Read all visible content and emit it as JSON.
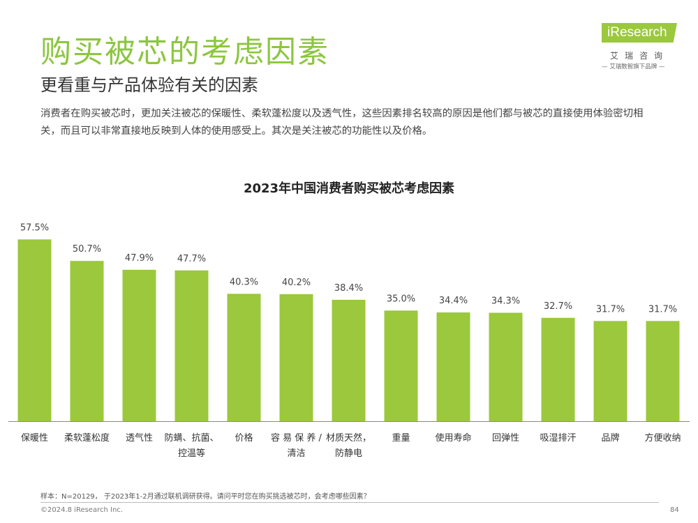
{
  "page": {
    "title": "购买被芯的考虑因素",
    "subtitle": "更看重与产品体验有关的因素",
    "description": "消费者在购买被芯时，更加关注被芯的保暖性、柔软蓬松度以及透气性，这些因素排名较高的原因是他们都与被芯的直接使用体验密切相关，而且可以非常直接地反映到人体的使用感受上。其次是关注被芯的功能性以及价格。"
  },
  "logo": {
    "brand": "iResearch",
    "cn_name": "艾瑞咨询",
    "slogan": "— 艾瑞数智旗下品牌 —",
    "color": "#9bc83c"
  },
  "chart_data": {
    "type": "bar",
    "title": "2023年中国消费者购买被芯考虑因素",
    "categories": [
      "保暖性",
      "柔软蓬松度",
      "透气性",
      "防螨、抗菌、控温等",
      "价格",
      "容易保养/清洁",
      "材质天然，防静电",
      "重量",
      "使用寿命",
      "回弹性",
      "吸湿排汗",
      "品牌",
      "方便收纳"
    ],
    "category_lines": [
      [
        "保暖性"
      ],
      [
        "柔软蓬松度"
      ],
      [
        "透气性"
      ],
      [
        "防螨、抗菌、",
        "控温等"
      ],
      [
        "价格"
      ],
      [
        "容 易 保 养 /",
        "清洁"
      ],
      [
        "材质天然，",
        "防静电"
      ],
      [
        "重量"
      ],
      [
        "使用寿命"
      ],
      [
        "回弹性"
      ],
      [
        "吸湿排汗"
      ],
      [
        "品牌"
      ],
      [
        "方便收纳"
      ]
    ],
    "values": [
      57.5,
      50.7,
      47.9,
      47.7,
      40.3,
      40.2,
      38.4,
      35.0,
      34.4,
      34.3,
      32.7,
      31.7,
      31.7
    ],
    "value_labels": [
      "57.5%",
      "50.7%",
      "47.9%",
      "47.7%",
      "40.3%",
      "40.2%",
      "38.4%",
      "35.0%",
      "34.4%",
      "34.3%",
      "32.7%",
      "31.7%",
      "31.7%"
    ],
    "ylim": [
      0,
      60
    ],
    "xlabel": "",
    "ylabel": "",
    "grid": false,
    "bar_color": "#9bc83c"
  },
  "footer": {
    "note": "样本：N=20129， 于2023年1-2月通过联机调研获得。请问平时您在购买挑选被芯时，会考虑哪些因素？",
    "copyright": "©2024.8 iResearch Inc.",
    "page_number": "84"
  }
}
